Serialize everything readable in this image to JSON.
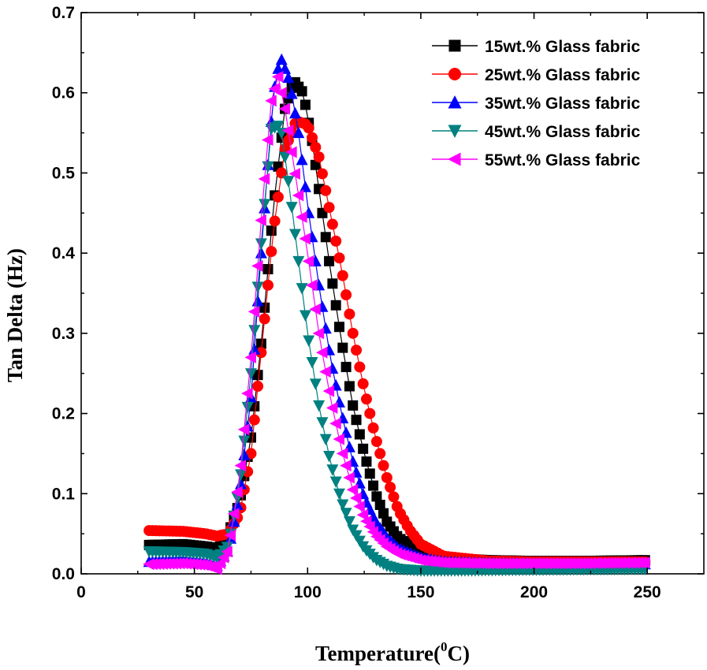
{
  "chart_data": {
    "type": "line",
    "title": "",
    "xlabel": "Temperature(",
    "xlabel_sup": "0",
    "xlabel_unit": "C)",
    "ylabel": "Tan Delta (Hz)",
    "xlim": [
      0,
      275
    ],
    "ylim": [
      0,
      0.7
    ],
    "x_ticks": [
      "0",
      "50",
      "100",
      "150",
      "200",
      "250"
    ],
    "y_ticks": [
      "0.0",
      "0.1",
      "0.2",
      "0.3",
      "0.4",
      "0.5",
      "0.6",
      "0.7"
    ],
    "legend_position": "top-right",
    "series": [
      {
        "name": "15wt.% Glass fabric",
        "color": "#000000",
        "marker": "square",
        "points": [
          [
            30,
            0.036
          ],
          [
            45,
            0.037
          ],
          [
            55,
            0.034
          ],
          [
            60,
            0.032
          ],
          [
            65,
            0.05
          ],
          [
            70,
            0.09
          ],
          [
            75,
            0.17
          ],
          [
            80,
            0.3
          ],
          [
            85,
            0.46
          ],
          [
            90,
            0.58
          ],
          [
            94,
            0.615
          ],
          [
            98,
            0.6
          ],
          [
            102,
            0.54
          ],
          [
            106,
            0.46
          ],
          [
            110,
            0.38
          ],
          [
            115,
            0.29
          ],
          [
            120,
            0.21
          ],
          [
            125,
            0.15
          ],
          [
            130,
            0.1
          ],
          [
            135,
            0.065
          ],
          [
            140,
            0.045
          ],
          [
            150,
            0.028
          ],
          [
            160,
            0.02
          ],
          [
            180,
            0.017
          ],
          [
            200,
            0.016
          ],
          [
            220,
            0.016
          ],
          [
            250,
            0.017
          ]
        ]
      },
      {
        "name": "25wt.% Glass fabric",
        "color": "#ff0000",
        "marker": "circle",
        "points": [
          [
            30,
            0.054
          ],
          [
            45,
            0.053
          ],
          [
            55,
            0.05
          ],
          [
            60,
            0.047
          ],
          [
            65,
            0.05
          ],
          [
            70,
            0.075
          ],
          [
            75,
            0.15
          ],
          [
            80,
            0.29
          ],
          [
            85,
            0.43
          ],
          [
            90,
            0.53
          ],
          [
            95,
            0.565
          ],
          [
            100,
            0.56
          ],
          [
            105,
            0.52
          ],
          [
            110,
            0.45
          ],
          [
            115,
            0.38
          ],
          [
            120,
            0.3
          ],
          [
            125,
            0.23
          ],
          [
            130,
            0.17
          ],
          [
            135,
            0.12
          ],
          [
            140,
            0.08
          ],
          [
            145,
            0.055
          ],
          [
            150,
            0.037
          ],
          [
            160,
            0.022
          ],
          [
            180,
            0.016
          ],
          [
            200,
            0.015
          ],
          [
            220,
            0.015
          ],
          [
            250,
            0.015
          ]
        ]
      },
      {
        "name": "35wt.% Glass fabric",
        "color": "#0000ff",
        "marker": "triangle-up",
        "points": [
          [
            30,
            0.015
          ],
          [
            45,
            0.017
          ],
          [
            55,
            0.014
          ],
          [
            60,
            0.01
          ],
          [
            65,
            0.03
          ],
          [
            70,
            0.1
          ],
          [
            75,
            0.22
          ],
          [
            80,
            0.42
          ],
          [
            85,
            0.6
          ],
          [
            88,
            0.645
          ],
          [
            92,
            0.615
          ],
          [
            96,
            0.55
          ],
          [
            100,
            0.46
          ],
          [
            105,
            0.36
          ],
          [
            110,
            0.27
          ],
          [
            115,
            0.2
          ],
          [
            120,
            0.14
          ],
          [
            125,
            0.095
          ],
          [
            130,
            0.065
          ],
          [
            135,
            0.045
          ],
          [
            140,
            0.032
          ],
          [
            150,
            0.02
          ],
          [
            160,
            0.015
          ],
          [
            180,
            0.013
          ],
          [
            200,
            0.012
          ],
          [
            220,
            0.012
          ],
          [
            250,
            0.012
          ]
        ]
      },
      {
        "name": "45wt.% Glass fabric",
        "color": "#008080",
        "marker": "triangle-down",
        "points": [
          [
            30,
            0.028
          ],
          [
            45,
            0.027
          ],
          [
            55,
            0.025
          ],
          [
            60,
            0.02
          ],
          [
            65,
            0.035
          ],
          [
            70,
            0.11
          ],
          [
            75,
            0.25
          ],
          [
            80,
            0.43
          ],
          [
            84,
            0.555
          ],
          [
            88,
            0.56
          ],
          [
            92,
            0.48
          ],
          [
            96,
            0.39
          ],
          [
            100,
            0.3
          ],
          [
            105,
            0.21
          ],
          [
            110,
            0.14
          ],
          [
            115,
            0.09
          ],
          [
            120,
            0.055
          ],
          [
            125,
            0.032
          ],
          [
            130,
            0.018
          ],
          [
            135,
            0.01
          ],
          [
            140,
            0.006
          ],
          [
            150,
            0.004
          ],
          [
            165,
            0.004
          ],
          [
            200,
            0.005
          ],
          [
            250,
            0.006
          ]
        ]
      },
      {
        "name": "55wt.% Glass fabric",
        "color": "#ff00ff",
        "marker": "triangle-left",
        "points": [
          [
            30,
            0.012
          ],
          [
            45,
            0.013
          ],
          [
            55,
            0.011
          ],
          [
            60,
            0.006
          ],
          [
            65,
            0.03
          ],
          [
            70,
            0.12
          ],
          [
            75,
            0.27
          ],
          [
            80,
            0.46
          ],
          [
            84,
            0.59
          ],
          [
            87,
            0.62
          ],
          [
            90,
            0.58
          ],
          [
            95,
            0.49
          ],
          [
            100,
            0.4
          ],
          [
            105,
            0.3
          ],
          [
            110,
            0.22
          ],
          [
            115,
            0.155
          ],
          [
            120,
            0.105
          ],
          [
            125,
            0.07
          ],
          [
            130,
            0.048
          ],
          [
            135,
            0.034
          ],
          [
            140,
            0.025
          ],
          [
            150,
            0.017
          ],
          [
            160,
            0.014
          ],
          [
            180,
            0.013
          ],
          [
            200,
            0.013
          ],
          [
            220,
            0.013
          ],
          [
            250,
            0.014
          ]
        ]
      }
    ]
  }
}
